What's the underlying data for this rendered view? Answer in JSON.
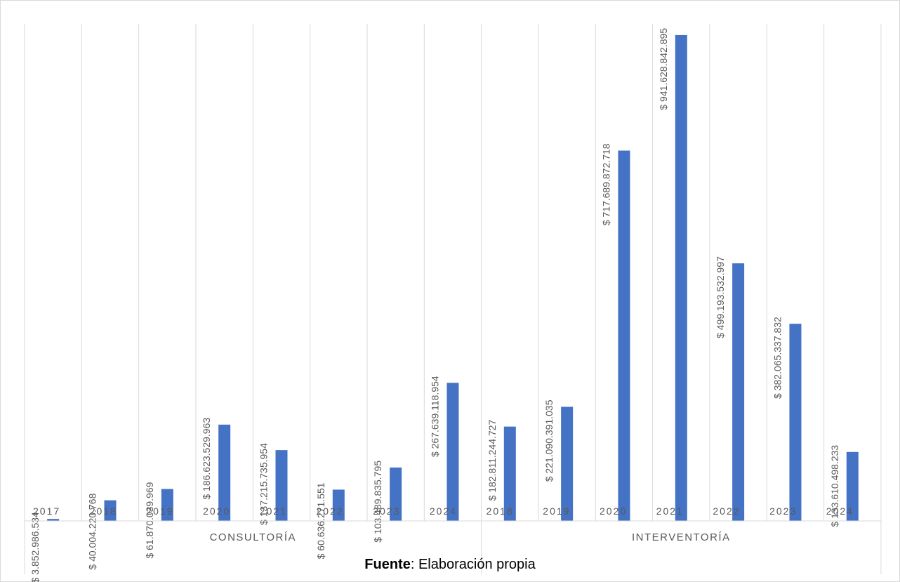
{
  "chart_data": {
    "type": "bar",
    "colors": {
      "bar": "#4472c4",
      "text": "#595959",
      "grid": "#d9d9d9"
    },
    "grid": true,
    "legend": "none",
    "ylim": [
      0,
      1000000000000
    ],
    "groups": [
      {
        "name": "CONSULTORÍA",
        "categories": [
          "2017",
          "2018",
          "2019",
          "2020",
          "2021",
          "2022",
          "2023",
          "2024"
        ]
      },
      {
        "name": "INTERVENTORÍA",
        "categories": [
          "2018",
          "2019",
          "2020",
          "2021",
          "2022",
          "2023",
          "2024"
        ]
      }
    ],
    "series": [
      {
        "values": [
          3852986534,
          40004220768,
          61870039969,
          186623529963,
          137215735954,
          60636271551,
          103489835795,
          267639118954,
          182811244727,
          221090391035,
          717689872718,
          941628842895,
          499193532997,
          382065337832,
          133610498233
        ],
        "data_labels": [
          "$ 3.852.986.534",
          "$ 40.004.220.768",
          "$ 61.870.039.969",
          "$ 186.623.529.963",
          "$ 137.215.735.954",
          "$ 60.636.271.551",
          "$ 103.489.835.795",
          "$ 267.639.118.954",
          "$ 182.811.244.727",
          "$ 221.090.391.035",
          "$ 717.689.872.718",
          "$ 941.628.842.895",
          "$ 499.193.532.997",
          "$ 382.065.337.832",
          "$ 133.610.498.233"
        ]
      }
    ]
  },
  "footer": {
    "source_bold": "Fuente",
    "source_text": ": Elaboración propia"
  }
}
